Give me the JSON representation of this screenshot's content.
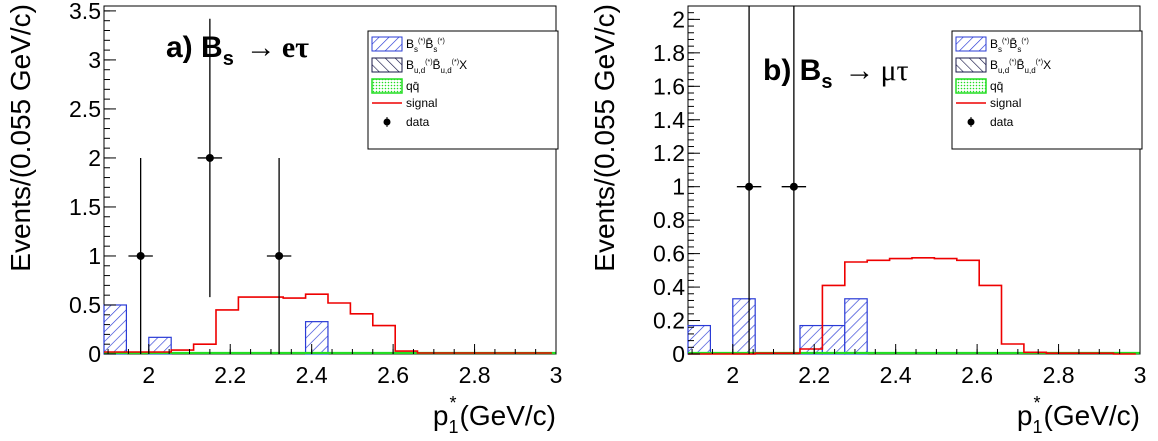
{
  "chart_data": [
    {
      "type": "bar",
      "panel_label": "a)",
      "decay_parent": "B",
      "decay_parent_sub": "s",
      "decay_arrow": "→",
      "decay_products": "eτ",
      "ylabel": "Events/(0.055 GeV/c)",
      "xlabel_main": "p",
      "xlabel_sub": "1",
      "xlabel_sup": "*",
      "xlabel_unit": "(GeV/c)",
      "xlim": [
        1.89,
        3.0
      ],
      "ylim": [
        0,
        3.55
      ],
      "xticks": [
        {
          "v": 2.0,
          "t": "2"
        },
        {
          "v": 2.2,
          "t": "2.2"
        },
        {
          "v": 2.4,
          "t": "2.4"
        },
        {
          "v": 2.6,
          "t": "2.6"
        },
        {
          "v": 2.8,
          "t": "2.8"
        },
        {
          "v": 3.0,
          "t": "3"
        }
      ],
      "yticks": [
        {
          "v": 0,
          "t": "0"
        },
        {
          "v": 0.5,
          "t": "0.5"
        },
        {
          "v": 1,
          "t": "1"
        },
        {
          "v": 1.5,
          "t": "1.5"
        },
        {
          "v": 2,
          "t": "2"
        },
        {
          "v": 2.5,
          "t": "2.5"
        },
        {
          "v": 3,
          "t": "3"
        },
        {
          "v": 3.5,
          "t": "3.5"
        }
      ],
      "bin_edges": [
        1.89,
        1.945,
        2.0,
        2.055,
        2.11,
        2.165,
        2.22,
        2.275,
        2.33,
        2.385,
        2.44,
        2.495,
        2.55,
        2.605,
        2.66,
        2.715,
        2.77,
        2.825,
        2.88,
        2.935,
        2.99
      ],
      "bsbs_counts": [
        0.5,
        0,
        0.17,
        0,
        0,
        0,
        0,
        0,
        0,
        0.33,
        0,
        0,
        0,
        0,
        0,
        0,
        0,
        0,
        0,
        0
      ],
      "bud_counts": [
        0,
        0,
        0,
        0,
        0,
        0,
        0,
        0,
        0,
        0,
        0,
        0,
        0,
        0,
        0,
        0,
        0,
        0,
        0,
        0
      ],
      "qq_counts": [
        0,
        0,
        0,
        0,
        0,
        0,
        0,
        0,
        0,
        0,
        0,
        0,
        0,
        0,
        0,
        0,
        0,
        0,
        0,
        0
      ],
      "signal": [
        0.02,
        0.02,
        0.02,
        0.04,
        0.1,
        0.45,
        0.58,
        0.58,
        0.57,
        0.61,
        0.52,
        0.41,
        0.29,
        0.03,
        0.01,
        0.01,
        0.01,
        0.01,
        0.01,
        0.01
      ],
      "data_points": [
        {
          "x": 1.98,
          "y": 1,
          "xerr": 0.03,
          "yerr_lo": 1,
          "yerr_hi": 1
        },
        {
          "x": 2.15,
          "y": 2,
          "xerr": 0.03,
          "yerr_lo": 1.42,
          "yerr_hi": 1.42
        },
        {
          "x": 2.32,
          "y": 1,
          "xerr": 0.03,
          "yerr_lo": 1,
          "yerr_hi": 1
        }
      ],
      "legend": [
        {
          "key": "bsbs",
          "label_html": "B<tspan font-size='8' dy='4'>s</tspan><tspan font-size='7' dy='-9'>(*)</tspan><tspan dy='5'>B̄</tspan><tspan font-size='8' dy='4'>s</tspan><tspan font-size='7' dy='-9'>(*)</tspan>"
        },
        {
          "key": "bud",
          "label_html": "B<tspan font-size='8' dy='4'>u,d</tspan><tspan font-size='7' dy='-9'>(*)</tspan><tspan dy='5'>B̄</tspan><tspan font-size='8' dy='4'>u,d</tspan><tspan font-size='7' dy='-9'>(*)</tspan><tspan dy='5'>X</tspan>"
        },
        {
          "key": "qq",
          "label_html": "qq̄"
        },
        {
          "key": "signal",
          "label_html": "signal"
        },
        {
          "key": "data",
          "label_html": "data"
        }
      ]
    },
    {
      "type": "bar",
      "panel_label": "b)",
      "decay_parent": "B",
      "decay_parent_sub": "s",
      "decay_arrow": "→",
      "decay_products": "μτ",
      "ylabel": "Events/(0.055 GeV/c)",
      "xlabel_main": "p",
      "xlabel_sub": "1",
      "xlabel_sup": "*",
      "xlabel_unit": "(GeV/c)",
      "xlim": [
        1.89,
        3.0
      ],
      "ylim": [
        0,
        2.08
      ],
      "xticks": [
        {
          "v": 2.0,
          "t": "2"
        },
        {
          "v": 2.2,
          "t": "2.2"
        },
        {
          "v": 2.4,
          "t": "2.4"
        },
        {
          "v": 2.6,
          "t": "2.6"
        },
        {
          "v": 2.8,
          "t": "2.8"
        },
        {
          "v": 3.0,
          "t": "3"
        }
      ],
      "yticks": [
        {
          "v": 0,
          "t": "0"
        },
        {
          "v": 0.2,
          "t": "0.2"
        },
        {
          "v": 0.4,
          "t": "0.4"
        },
        {
          "v": 0.6,
          "t": "0.6"
        },
        {
          "v": 0.8,
          "t": "0.8"
        },
        {
          "v": 1,
          "t": "1"
        },
        {
          "v": 1.2,
          "t": "1.2"
        },
        {
          "v": 1.4,
          "t": "1.4"
        },
        {
          "v": 1.6,
          "t": "1.6"
        },
        {
          "v": 1.8,
          "t": "1.8"
        },
        {
          "v": 2,
          "t": "2"
        }
      ],
      "bin_edges": [
        1.89,
        1.945,
        2.0,
        2.055,
        2.11,
        2.165,
        2.22,
        2.275,
        2.33,
        2.385,
        2.44,
        2.495,
        2.55,
        2.605,
        2.66,
        2.715,
        2.77,
        2.825,
        2.88,
        2.935,
        2.99
      ],
      "bsbs_counts": [
        0.17,
        0,
        0.33,
        0,
        0,
        0.17,
        0.17,
        0.33,
        0,
        0,
        0,
        0,
        0,
        0,
        0,
        0,
        0,
        0,
        0,
        0
      ],
      "bud_counts": [
        0,
        0,
        0,
        0,
        0,
        0,
        0,
        0,
        0,
        0,
        0,
        0,
        0,
        0,
        0,
        0,
        0,
        0,
        0,
        0
      ],
      "qq_counts": [
        0,
        0,
        0,
        0,
        0,
        0,
        0,
        0,
        0,
        0,
        0,
        0,
        0,
        0,
        0,
        0,
        0,
        0,
        0,
        0
      ],
      "signal": [
        0,
        0,
        0,
        0.005,
        0.005,
        0.03,
        0.41,
        0.55,
        0.56,
        0.57,
        0.575,
        0.57,
        0.56,
        0.41,
        0.06,
        0.01,
        0.005,
        0.005,
        0.005,
        0
      ],
      "data_points": [
        {
          "x": 2.04,
          "y": 1,
          "xerr": 0.03,
          "yerr_lo": 1,
          "yerr_hi": 1.2
        },
        {
          "x": 2.15,
          "y": 1,
          "xerr": 0.03,
          "yerr_lo": 1,
          "yerr_hi": 1.2
        }
      ],
      "legend": [
        {
          "key": "bsbs",
          "label_html": "B<tspan font-size='8' dy='4'>s</tspan><tspan font-size='7' dy='-9'>(*)</tspan><tspan dy='5'>B̄</tspan><tspan font-size='8' dy='4'>s</tspan><tspan font-size='7' dy='-9'>(*)</tspan>"
        },
        {
          "key": "bud",
          "label_html": "B<tspan font-size='8' dy='4'>u,d</tspan><tspan font-size='7' dy='-9'>(*)</tspan><tspan dy='5'>B̄</tspan><tspan font-size='8' dy='4'>u,d</tspan><tspan font-size='7' dy='-9'>(*)</tspan><tspan dy='5'>X</tspan>"
        },
        {
          "key": "qq",
          "label_html": "qq̄"
        },
        {
          "key": "signal",
          "label_html": "signal"
        },
        {
          "key": "data",
          "label_html": "data"
        }
      ]
    }
  ],
  "colors": {
    "hatch": "#2a3bd6",
    "qq": "#22dd22",
    "signal": "#ee0000",
    "data": "#000000"
  }
}
